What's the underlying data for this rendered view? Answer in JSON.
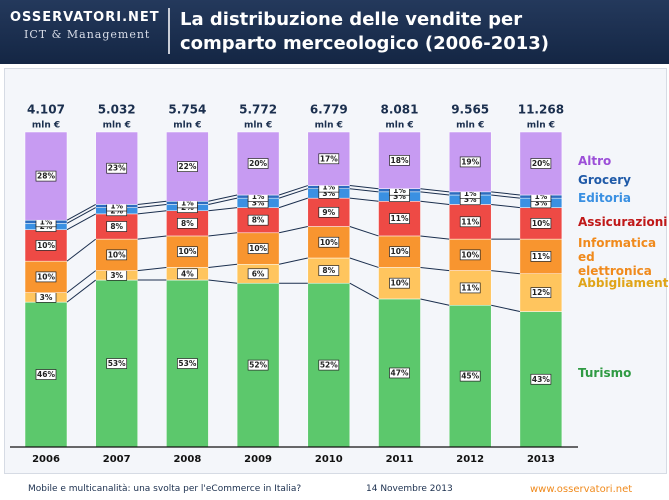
{
  "header": {
    "logo_main": "OSSERVATORI.NET",
    "logo_sub": "ICT & Management"
  },
  "footer": {
    "left": "Mobile e multicanalità: una svolta per l'eCommerce in Italia?",
    "date": "14 Novembre 2013",
    "site": "www.osservatori.net"
  },
  "chart_data": {
    "type": "stacked_bar_100",
    "title": "La distribuzione delle vendite per comparto merceologico (2006-2013)",
    "categories": [
      "2006",
      "2007",
      "2008",
      "2009",
      "2010",
      "2011",
      "2012",
      "2013"
    ],
    "totals": [
      4107,
      5032,
      5754,
      5772,
      6779,
      8081,
      9565,
      11268
    ],
    "totals_labels": [
      "4.107",
      "5.032",
      "5.754",
      "5.772",
      "6.779",
      "8.081",
      "9.565",
      "11.268"
    ],
    "total_unit": "mln €",
    "series": [
      {
        "name": "Turismo",
        "color": "#5cc86c",
        "text_color": "#2f9a43",
        "values": [
          46,
          53,
          53,
          52,
          52,
          47,
          45,
          43
        ],
        "value_labels": [
          "46%",
          "53%",
          "53%",
          "52%",
          "52%",
          "47%",
          "45%",
          "43%"
        ]
      },
      {
        "name": "Abbigliamento",
        "color": "#ffc55e",
        "text_color": "#e0a418",
        "values": [
          3,
          3,
          4,
          6,
          8,
          10,
          11,
          12
        ],
        "value_labels": [
          "3%",
          "3%",
          "4%",
          "6%",
          "8%",
          "10%",
          "11%",
          "12%"
        ]
      },
      {
        "name": "Informatica ed elettronica",
        "color": "#f8952f",
        "text_color": "#f08a1c",
        "values": [
          10,
          10,
          10,
          10,
          10,
          10,
          10,
          11
        ],
        "value_labels": [
          "10%",
          "10%",
          "10%",
          "10%",
          "10%",
          "10%",
          "10%",
          "11%"
        ]
      },
      {
        "name": "Assicurazioni",
        "color": "#ee4a45",
        "text_color": "#c01818",
        "values": [
          10,
          8,
          8,
          8,
          9,
          11,
          11,
          10
        ],
        "value_labels": [
          "10%",
          "8%",
          "8%",
          "8%",
          "9%",
          "11%",
          "11%",
          "10%"
        ]
      },
      {
        "name": "Editoria",
        "color": "#3a90e2",
        "text_color": "#3a90e2",
        "values": [
          2,
          2,
          2,
          3,
          3,
          3,
          3,
          3
        ],
        "value_labels": [
          "2%",
          "2%",
          "2%",
          "3%",
          "3%",
          "3%",
          "3%",
          "3%"
        ]
      },
      {
        "name": "Grocery",
        "color": "#2c6cc0",
        "text_color": "#1f5aa8",
        "values": [
          1,
          1,
          1,
          1,
          1,
          1,
          1,
          1
        ],
        "value_labels": [
          "1%",
          "1%",
          "1%",
          "1%",
          "1%",
          "1%",
          "1%",
          "1%"
        ]
      },
      {
        "name": "Altro",
        "color": "#c79bf2",
        "text_color": "#9c4fd8",
        "values": [
          28,
          23,
          22,
          20,
          17,
          18,
          19,
          20
        ],
        "value_labels": [
          "28%",
          "23%",
          "22%",
          "20%",
          "17%",
          "18%",
          "19%",
          "20%"
        ]
      }
    ]
  }
}
